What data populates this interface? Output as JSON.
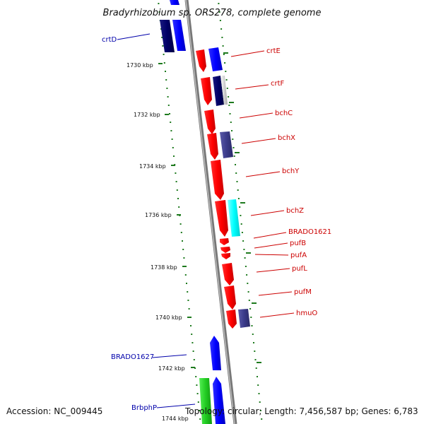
{
  "title": "Bradyrhizobium sp. ORS278, complete genome",
  "footer": {
    "accession": "Accession: NC_009445",
    "topology": "Topology: circular; Length: 7,456,587 bp; Genes: 6,783"
  },
  "colors": {
    "backbone": "#888888",
    "tick": "#1e7a1e",
    "right_label": "#cc0000",
    "left_label": "#0000aa",
    "red_gene": "#ff0000",
    "blue_gene": "#0000ff",
    "navy_gene": "#000066",
    "slate_gene": "#3b3b8a",
    "cyan_gene": "#00ffff",
    "green_gene": "#22cc22"
  },
  "scale": {
    "unit": "kbp",
    "labels": [
      "1730 kbp",
      "1732 kbp",
      "1734 kbp",
      "1736 kbp",
      "1738 kbp",
      "1740 kbp",
      "1742 kbp",
      "1744 kbp"
    ]
  },
  "genes_right": [
    "crtE",
    "crtF",
    "bchC",
    "bchX",
    "bchY",
    "bchZ",
    "BRADO1621",
    "pufB",
    "pufA",
    "pufL",
    "pufM",
    "hmuO"
  ],
  "genes_left": [
    "crtD",
    "BRADO1627",
    "BrbphP"
  ]
}
